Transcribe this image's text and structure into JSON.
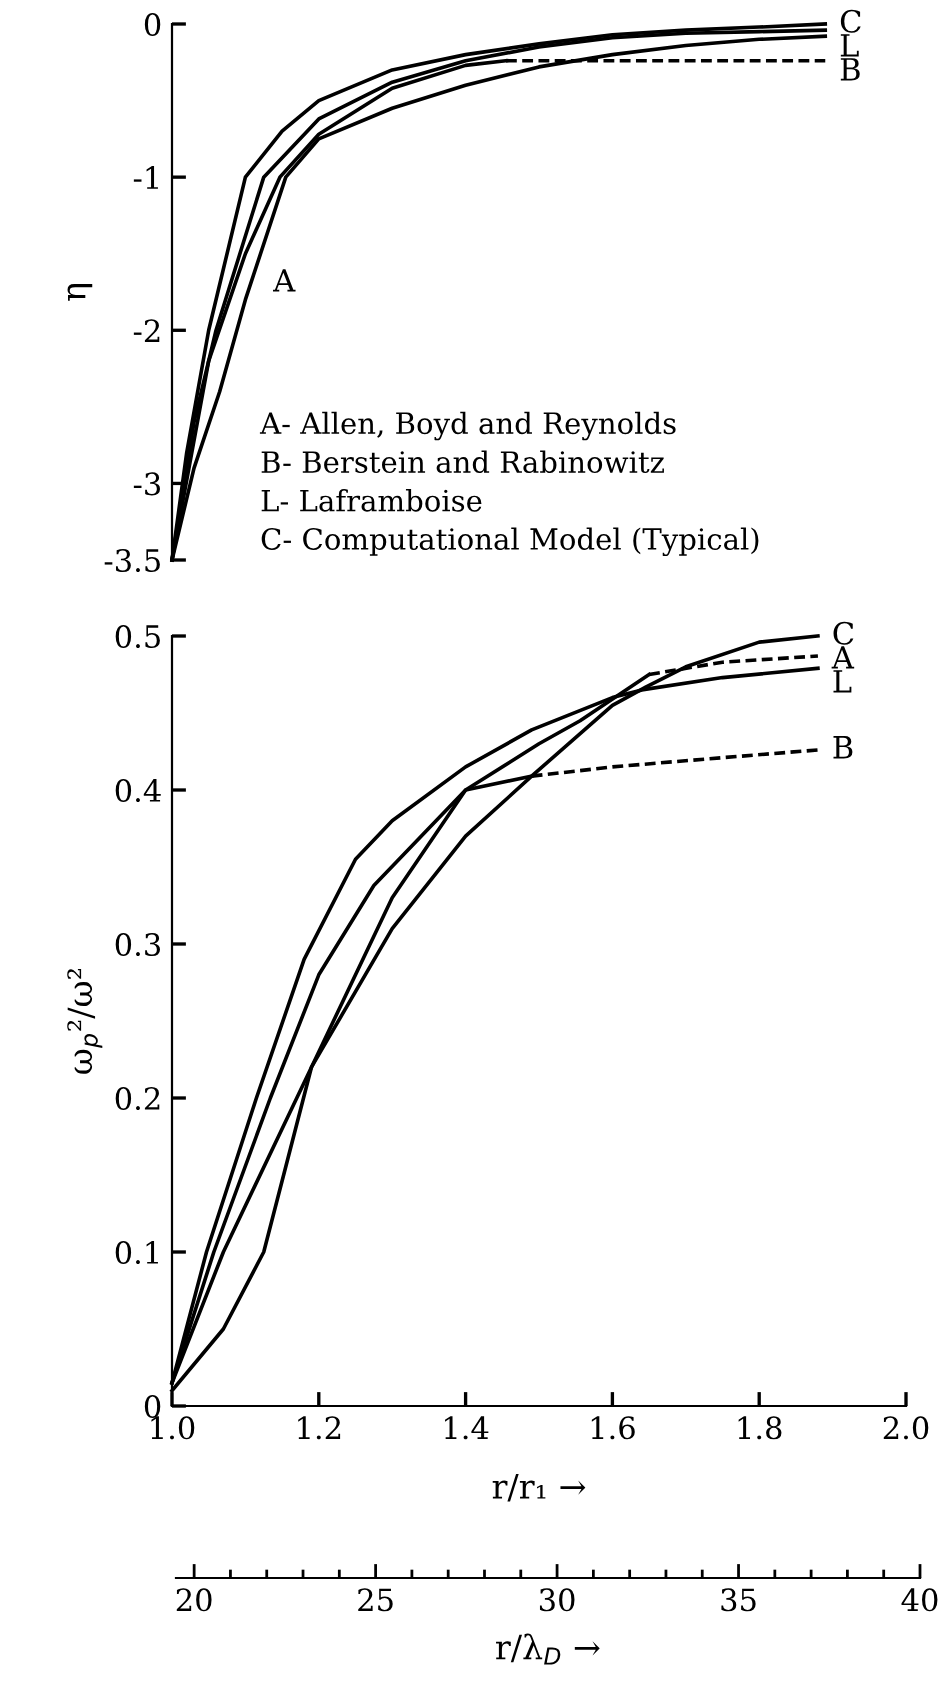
{
  "chart_data": [
    {
      "type": "line",
      "ylabel": "η",
      "xlim": [
        1.0,
        2.0
      ],
      "ylim": [
        -3.5,
        0
      ],
      "yticks": [
        0,
        -1,
        -2,
        -3,
        -3.5
      ],
      "tick_labels": "y",
      "legend": false,
      "grid": false,
      "annotations": [
        "A- Allen, Boyd and Reynolds",
        "B- Berstein and Rabinowitz",
        "L- Laframboise",
        "C- Computational Model (Typical)",
        {
          "text": "A",
          "x": 1.1,
          "y": -1.8
        }
      ],
      "series": [
        {
          "color": "#000000",
          "line_style": "solid",
          "x": [
            1.0,
            1.03,
            1.065,
            1.1,
            1.155,
            1.2,
            1.3,
            1.4,
            1.5,
            1.6,
            1.7,
            1.8,
            1.89
          ],
          "values": [
            -3.5,
            -2.9,
            -2.4,
            -1.8,
            -1.0,
            -0.75,
            -0.55,
            -0.4,
            -0.28,
            -0.2,
            -0.14,
            -0.1,
            -0.08
          ]
        },
        {
          "color": "#000000",
          "line_style": "solid",
          "x": [
            1.0,
            1.05,
            1.1,
            1.147,
            1.2,
            1.3,
            1.4,
            1.455
          ],
          "values": [
            -3.5,
            -2.2,
            -1.5,
            -1.0,
            -0.72,
            -0.42,
            -0.27,
            -0.24
          ]
        },
        {
          "name": "B",
          "color": "#000000",
          "line_style": "dashed",
          "x": [
            1.455,
            1.89
          ],
          "values": [
            -0.24,
            -0.24
          ]
        },
        {
          "name": "L",
          "color": "#000000",
          "line_style": "solid",
          "x": [
            1.0,
            1.03,
            1.06,
            1.125,
            1.2,
            1.3,
            1.4,
            1.5,
            1.6,
            1.7,
            1.8,
            1.89
          ],
          "values": [
            -3.5,
            -2.6,
            -2.0,
            -1.0,
            -0.62,
            -0.38,
            -0.24,
            -0.15,
            -0.09,
            -0.06,
            -0.05,
            -0.04
          ]
        },
        {
          "name": "C",
          "color": "#000000",
          "line_style": "solid",
          "x": [
            1.0,
            1.02,
            1.05,
            1.1,
            1.15,
            1.2,
            1.3,
            1.4,
            1.5,
            1.6,
            1.7,
            1.8,
            1.89
          ],
          "values": [
            -3.5,
            -2.8,
            -2.0,
            -1.0,
            -0.7,
            -0.5,
            -0.3,
            -0.2,
            -0.13,
            -0.07,
            -0.04,
            -0.02,
            0
          ]
        }
      ]
    },
    {
      "type": "line",
      "xlabel": "r/r₁ →",
      "ylabel": "ω$_{p}$²/ω²",
      "x2label": "r/λ$_{D}$ →",
      "xlim": [
        1.0,
        2.0
      ],
      "ylim": [
        0,
        0.5
      ],
      "xticks": [
        {
          "value": 1.0,
          "label": "1.0"
        },
        1.2,
        1.4,
        1.6,
        1.8,
        {
          "value": 2.0,
          "label": "2.0"
        }
      ],
      "yticks": [
        0,
        0.1,
        0.2,
        0.3,
        0.4,
        0.5
      ],
      "x2lim": [
        19.5,
        40
      ],
      "x2ticks": [
        20,
        25,
        30,
        35,
        40
      ],
      "legend": false,
      "grid": false,
      "series": [
        {
          "color": "#000000",
          "line_style": "solid",
          "x": [
            1.0,
            1.07,
            1.125,
            1.19,
            1.3,
            1.4,
            1.5,
            1.556,
            1.65
          ],
          "values": [
            0.01,
            0.05,
            0.1,
            0.22,
            0.33,
            0.4,
            0.43,
            0.445,
            0.475
          ]
        },
        {
          "name": "A",
          "color": "#000000",
          "line_style": "dashed",
          "x": [
            1.65,
            1.75,
            1.88
          ],
          "values": [
            0.475,
            0.483,
            0.487
          ]
        },
        {
          "color": "#000000",
          "line_style": "solid",
          "x": [
            1.0,
            1.057,
            1.134,
            1.2,
            1.275,
            1.4,
            1.49
          ],
          "values": [
            0.015,
            0.1,
            0.2,
            0.28,
            0.338,
            0.4,
            0.409
          ]
        },
        {
          "name": "B",
          "color": "#000000",
          "line_style": "dashed",
          "x": [
            1.49,
            1.6,
            1.75,
            1.88
          ],
          "values": [
            0.409,
            0.415,
            0.421,
            0.426
          ]
        },
        {
          "name": "L",
          "color": "#000000",
          "line_style": "solid",
          "x": [
            1.0,
            1.047,
            1.115,
            1.18,
            1.25,
            1.3,
            1.4,
            1.49,
            1.6,
            1.64,
            1.75,
            1.88
          ],
          "values": [
            0.015,
            0.1,
            0.2,
            0.29,
            0.355,
            0.38,
            0.415,
            0.439,
            0.46,
            0.465,
            0.473,
            0.479
          ]
        },
        {
          "name": "C",
          "color": "#000000",
          "line_style": "solid",
          "x": [
            1.0,
            1.07,
            1.17,
            1.19,
            1.3,
            1.4,
            1.49,
            1.6,
            1.646,
            1.7,
            1.8,
            1.88
          ],
          "values": [
            0.015,
            0.1,
            0.2,
            0.22,
            0.31,
            0.37,
            0.409,
            0.455,
            0.467,
            0.48,
            0.496,
            0.5
          ]
        }
      ]
    }
  ]
}
